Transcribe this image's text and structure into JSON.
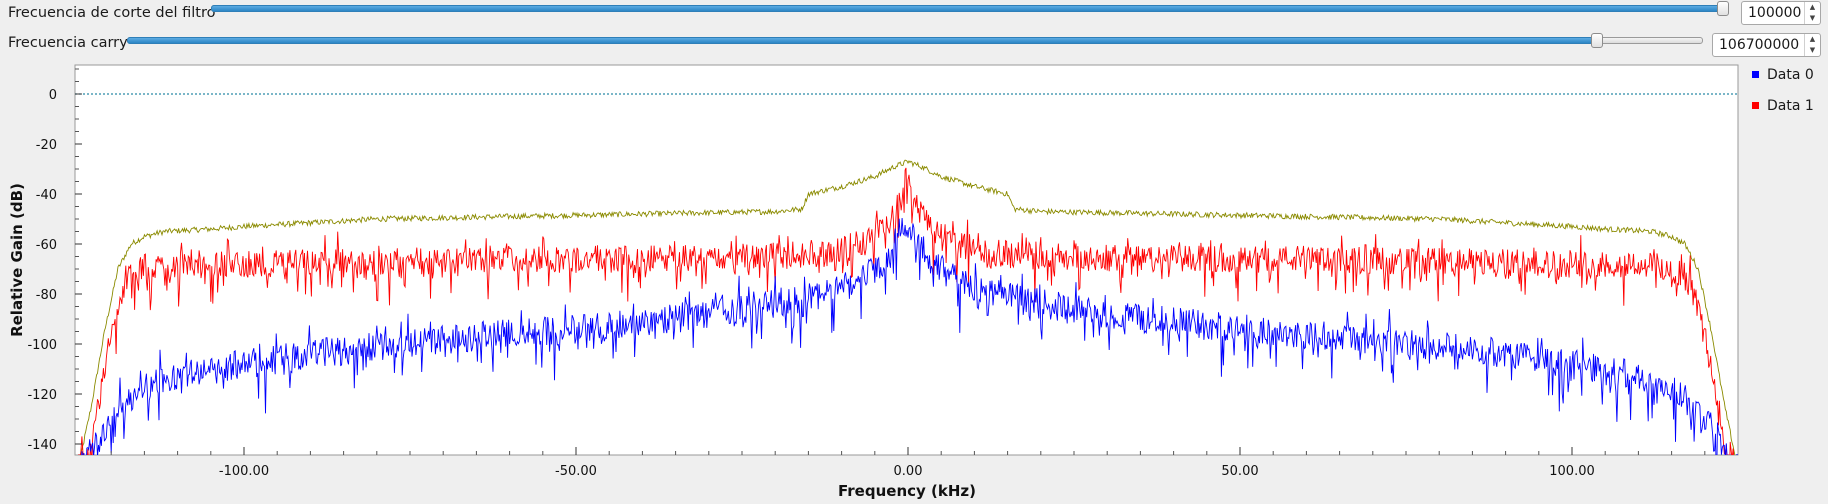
{
  "controls": {
    "filter_cutoff": {
      "label": "Frecuencia de corte del filtro",
      "value": "100000",
      "slider_fraction": 1.0
    },
    "carry": {
      "label": "Frecuencia carry",
      "value": "106700000",
      "slider_fraction": 0.915
    }
  },
  "chart_data": {
    "type": "line",
    "xlabel": "Frequency (kHz)",
    "ylabel": "Relative Gain (dB)",
    "xlim": [
      -125,
      125
    ],
    "ylim": [
      -140,
      10
    ],
    "xticks": [
      -100,
      -50,
      0,
      50,
      100
    ],
    "xtick_labels": [
      "-100.00",
      "-50.00",
      "0.00",
      "50.00",
      "100.00"
    ],
    "yticks": [
      0,
      -20,
      -40,
      -60,
      -80,
      -100,
      -120,
      -140
    ],
    "ytick_labels": [
      "0",
      "-20",
      "-40",
      "-60",
      "-80",
      "-100",
      "-120",
      "-140"
    ],
    "reference_line": {
      "y": 0,
      "color": "#2a8aa8",
      "style": "dotted"
    },
    "legend_position": "right",
    "series": [
      {
        "name": "Data 0",
        "color": "#0000ff",
        "x": [
          -125,
          -122,
          -120,
          -115,
          -110,
          -100,
          -90,
          -80,
          -70,
          -60,
          -50,
          -40,
          -30,
          -20,
          -15,
          -10,
          -7,
          -5,
          -3,
          -2,
          -1,
          0,
          1,
          2,
          3,
          5,
          7,
          10,
          15,
          20,
          30,
          40,
          50,
          60,
          70,
          80,
          90,
          100,
          110,
          115,
          120,
          122,
          125
        ],
        "y": [
          -150,
          -140,
          -130,
          -118,
          -113,
          -108,
          -104,
          -101,
          -98,
          -96,
          -94,
          -91,
          -88,
          -84,
          -81,
          -78,
          -74,
          -70,
          -65,
          -60,
          -55,
          -52,
          -55,
          -60,
          -65,
          -70,
          -74,
          -78,
          -81,
          -84,
          -88,
          -91,
          -94,
          -96,
          -98,
          -101,
          -104,
          -108,
          -113,
          -118,
          -130,
          -140,
          -150
        ]
      },
      {
        "name": "Data 1",
        "color": "#ff0000",
        "x": [
          -125,
          -123,
          -121,
          -119,
          -117,
          -115,
          -110,
          -100,
          -80,
          -60,
          -40,
          -20,
          -10,
          -5,
          -3,
          -2,
          -1,
          0,
          1,
          2,
          3,
          5,
          10,
          20,
          40,
          60,
          80,
          100,
          110,
          115,
          117,
          119,
          121,
          123,
          125
        ],
        "y": [
          -150,
          -140,
          -110,
          -85,
          -72,
          -70,
          -68,
          -68,
          -67,
          -66,
          -66,
          -65,
          -63,
          -56,
          -52,
          -48,
          -42,
          -30,
          -42,
          -48,
          -52,
          -56,
          -63,
          -65,
          -66,
          -66,
          -67,
          -68,
          -68,
          -70,
          -72,
          -85,
          -110,
          -140,
          -150
        ]
      },
      {
        "name": "",
        "color": "#8b8b00",
        "x": [
          -125,
          -123,
          -121,
          -119,
          -117,
          -115,
          -112,
          -105,
          -100,
          -80,
          -60,
          -40,
          -20,
          -16,
          -15,
          -10,
          -5,
          -2,
          0,
          2,
          5,
          10,
          15,
          16,
          20,
          40,
          60,
          80,
          100,
          105,
          112,
          115,
          117,
          119,
          121,
          123,
          125
        ],
        "y": [
          -150,
          -125,
          -95,
          -70,
          -60,
          -57,
          -55,
          -54,
          -53,
          -50,
          -49,
          -48,
          -47,
          -46,
          -40,
          -37,
          -33,
          -29,
          -27,
          -29,
          -33,
          -37,
          -40,
          -46,
          -47,
          -48,
          -49,
          -50,
          -53,
          -54,
          -55,
          -57,
          -60,
          -70,
          -95,
          -125,
          -150
        ]
      }
    ]
  }
}
